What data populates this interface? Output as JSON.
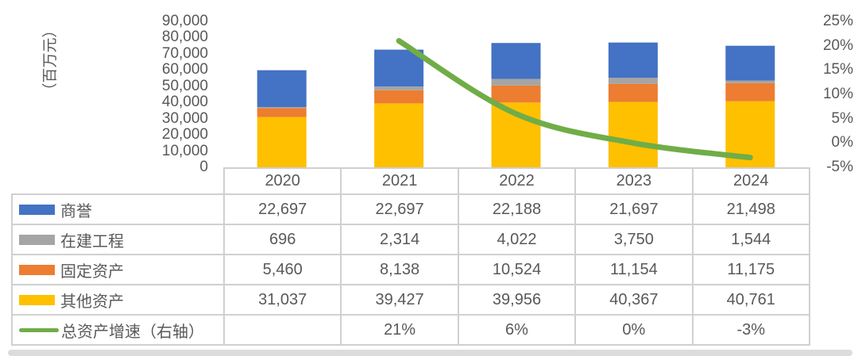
{
  "chart_data": {
    "type": "combo-stacked-bar-line",
    "title": "",
    "categories": [
      "2020",
      "2021",
      "2022",
      "2023",
      "2024"
    ],
    "left_axis": {
      "label": "（百万元）",
      "min": 0,
      "max": 90000,
      "step": 10000,
      "ticks": [
        "90,000",
        "80,000",
        "70,000",
        "60,000",
        "50,000",
        "40,000",
        "30,000",
        "20,000",
        "10,000",
        "0"
      ]
    },
    "right_axis": {
      "min": -5,
      "max": 25,
      "step": 5,
      "ticks": [
        "25%",
        "20%",
        "15%",
        "10%",
        "5%",
        "0%",
        "-5%"
      ]
    },
    "grid": "off",
    "legend_position": "table-left-column",
    "bar_series": [
      {
        "name": "商誉",
        "color": "#4472C4",
        "values": [
          22697,
          22697,
          22188,
          21697,
          21498
        ]
      },
      {
        "name": "在建工程",
        "color": "#A5A5A5",
        "values": [
          696,
          2314,
          4022,
          3750,
          1544
        ]
      },
      {
        "name": "固定资产",
        "color": "#ED7D31",
        "values": [
          5460,
          8138,
          10524,
          11154,
          11175
        ]
      },
      {
        "name": "其他资产",
        "color": "#FFC000",
        "values": [
          31037,
          39427,
          39956,
          40367,
          40761
        ]
      }
    ],
    "stack_order_bottom_to_top": [
      "其他资产",
      "固定资产",
      "在建工程",
      "商誉"
    ],
    "line_series": {
      "name": "总资产增速（右轴）",
      "color": "#70AD47",
      "axis": "right",
      "values": [
        null,
        21,
        6,
        0,
        -3
      ]
    },
    "table": {
      "rows": [
        {
          "label": "商誉",
          "swatch": "bar",
          "color": "#4472C4",
          "cells": [
            "22,697",
            "22,697",
            "22,188",
            "21,697",
            "21,498"
          ]
        },
        {
          "label": "在建工程",
          "swatch": "bar",
          "color": "#A5A5A5",
          "cells": [
            "696",
            "2,314",
            "4,022",
            "3,750",
            "1,544"
          ]
        },
        {
          "label": "固定资产",
          "swatch": "bar",
          "color": "#ED7D31",
          "cells": [
            "5,460",
            "8,138",
            "10,524",
            "11,154",
            "11,175"
          ]
        },
        {
          "label": "其他资产",
          "swatch": "bar",
          "color": "#FFC000",
          "cells": [
            "31,037",
            "39,427",
            "39,956",
            "40,367",
            "40,761"
          ]
        },
        {
          "label": "总资产增速（右轴）",
          "swatch": "line",
          "color": "#70AD47",
          "cells": [
            "",
            "21%",
            "6%",
            "0%",
            "-3%"
          ]
        }
      ]
    }
  },
  "colors": {
    "text": "#595959",
    "table_border": "#d0d0d0",
    "background": "#ffffff",
    "bottom_strip": "#dcdcdc"
  }
}
